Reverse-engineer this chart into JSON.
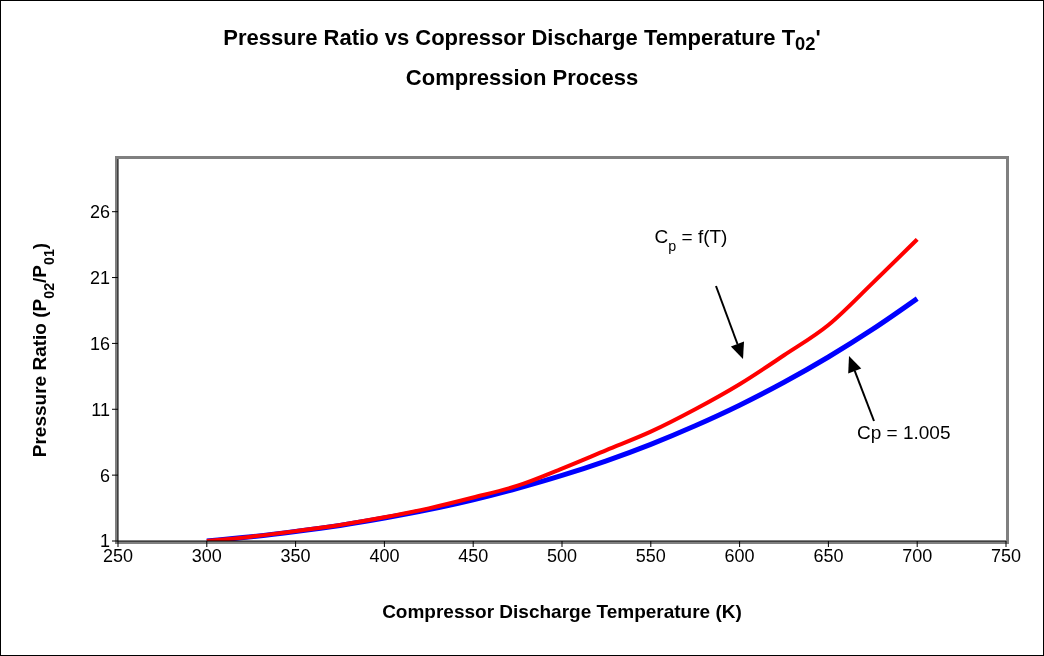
{
  "chart_data": {
    "type": "line",
    "title": "Pressure Ratio vs Copressor Discharge Temperature T$_{02}$'",
    "subtitle": "Compression Process",
    "xlabel": "Compressor Discharge Temperature (K)",
    "ylabel": "Pressure Ratio (P$_{02}$/P$_{01}$)",
    "x": [
      300,
      325,
      350,
      375,
      400,
      425,
      450,
      475,
      500,
      525,
      550,
      575,
      600,
      625,
      650,
      675,
      700
    ],
    "series": [
      {
        "color": "#0000ff",
        "values": [
          1,
          1.32,
          1.72,
          2.18,
          2.74,
          3.38,
          4.13,
          5.0,
          5.98,
          7.09,
          8.34,
          9.75,
          11.31,
          13.05,
          14.97,
          17.08,
          19.4
        ]
      },
      {
        "color": "#ff0000",
        "values": [
          1,
          1.33,
          1.75,
          2.22,
          2.8,
          3.48,
          4.3,
          5.2,
          6.5,
          7.9,
          9.3,
          11.0,
          12.9,
          15.1,
          17.4,
          20.6,
          23.9
        ]
      }
    ],
    "annotations": [
      "C$_{p}$ = f(T)",
      "Cp = 1.005"
    ],
    "xlim": [
      250,
      750
    ],
    "xticks": [
      250,
      300,
      350,
      400,
      450,
      500,
      550,
      600,
      650,
      700,
      750
    ],
    "ylim": [
      1,
      30
    ],
    "yticks": [
      1,
      6,
      11,
      16,
      21,
      26
    ],
    "grid": false,
    "legend": false,
    "marker": "none",
    "line_style": "solid"
  }
}
